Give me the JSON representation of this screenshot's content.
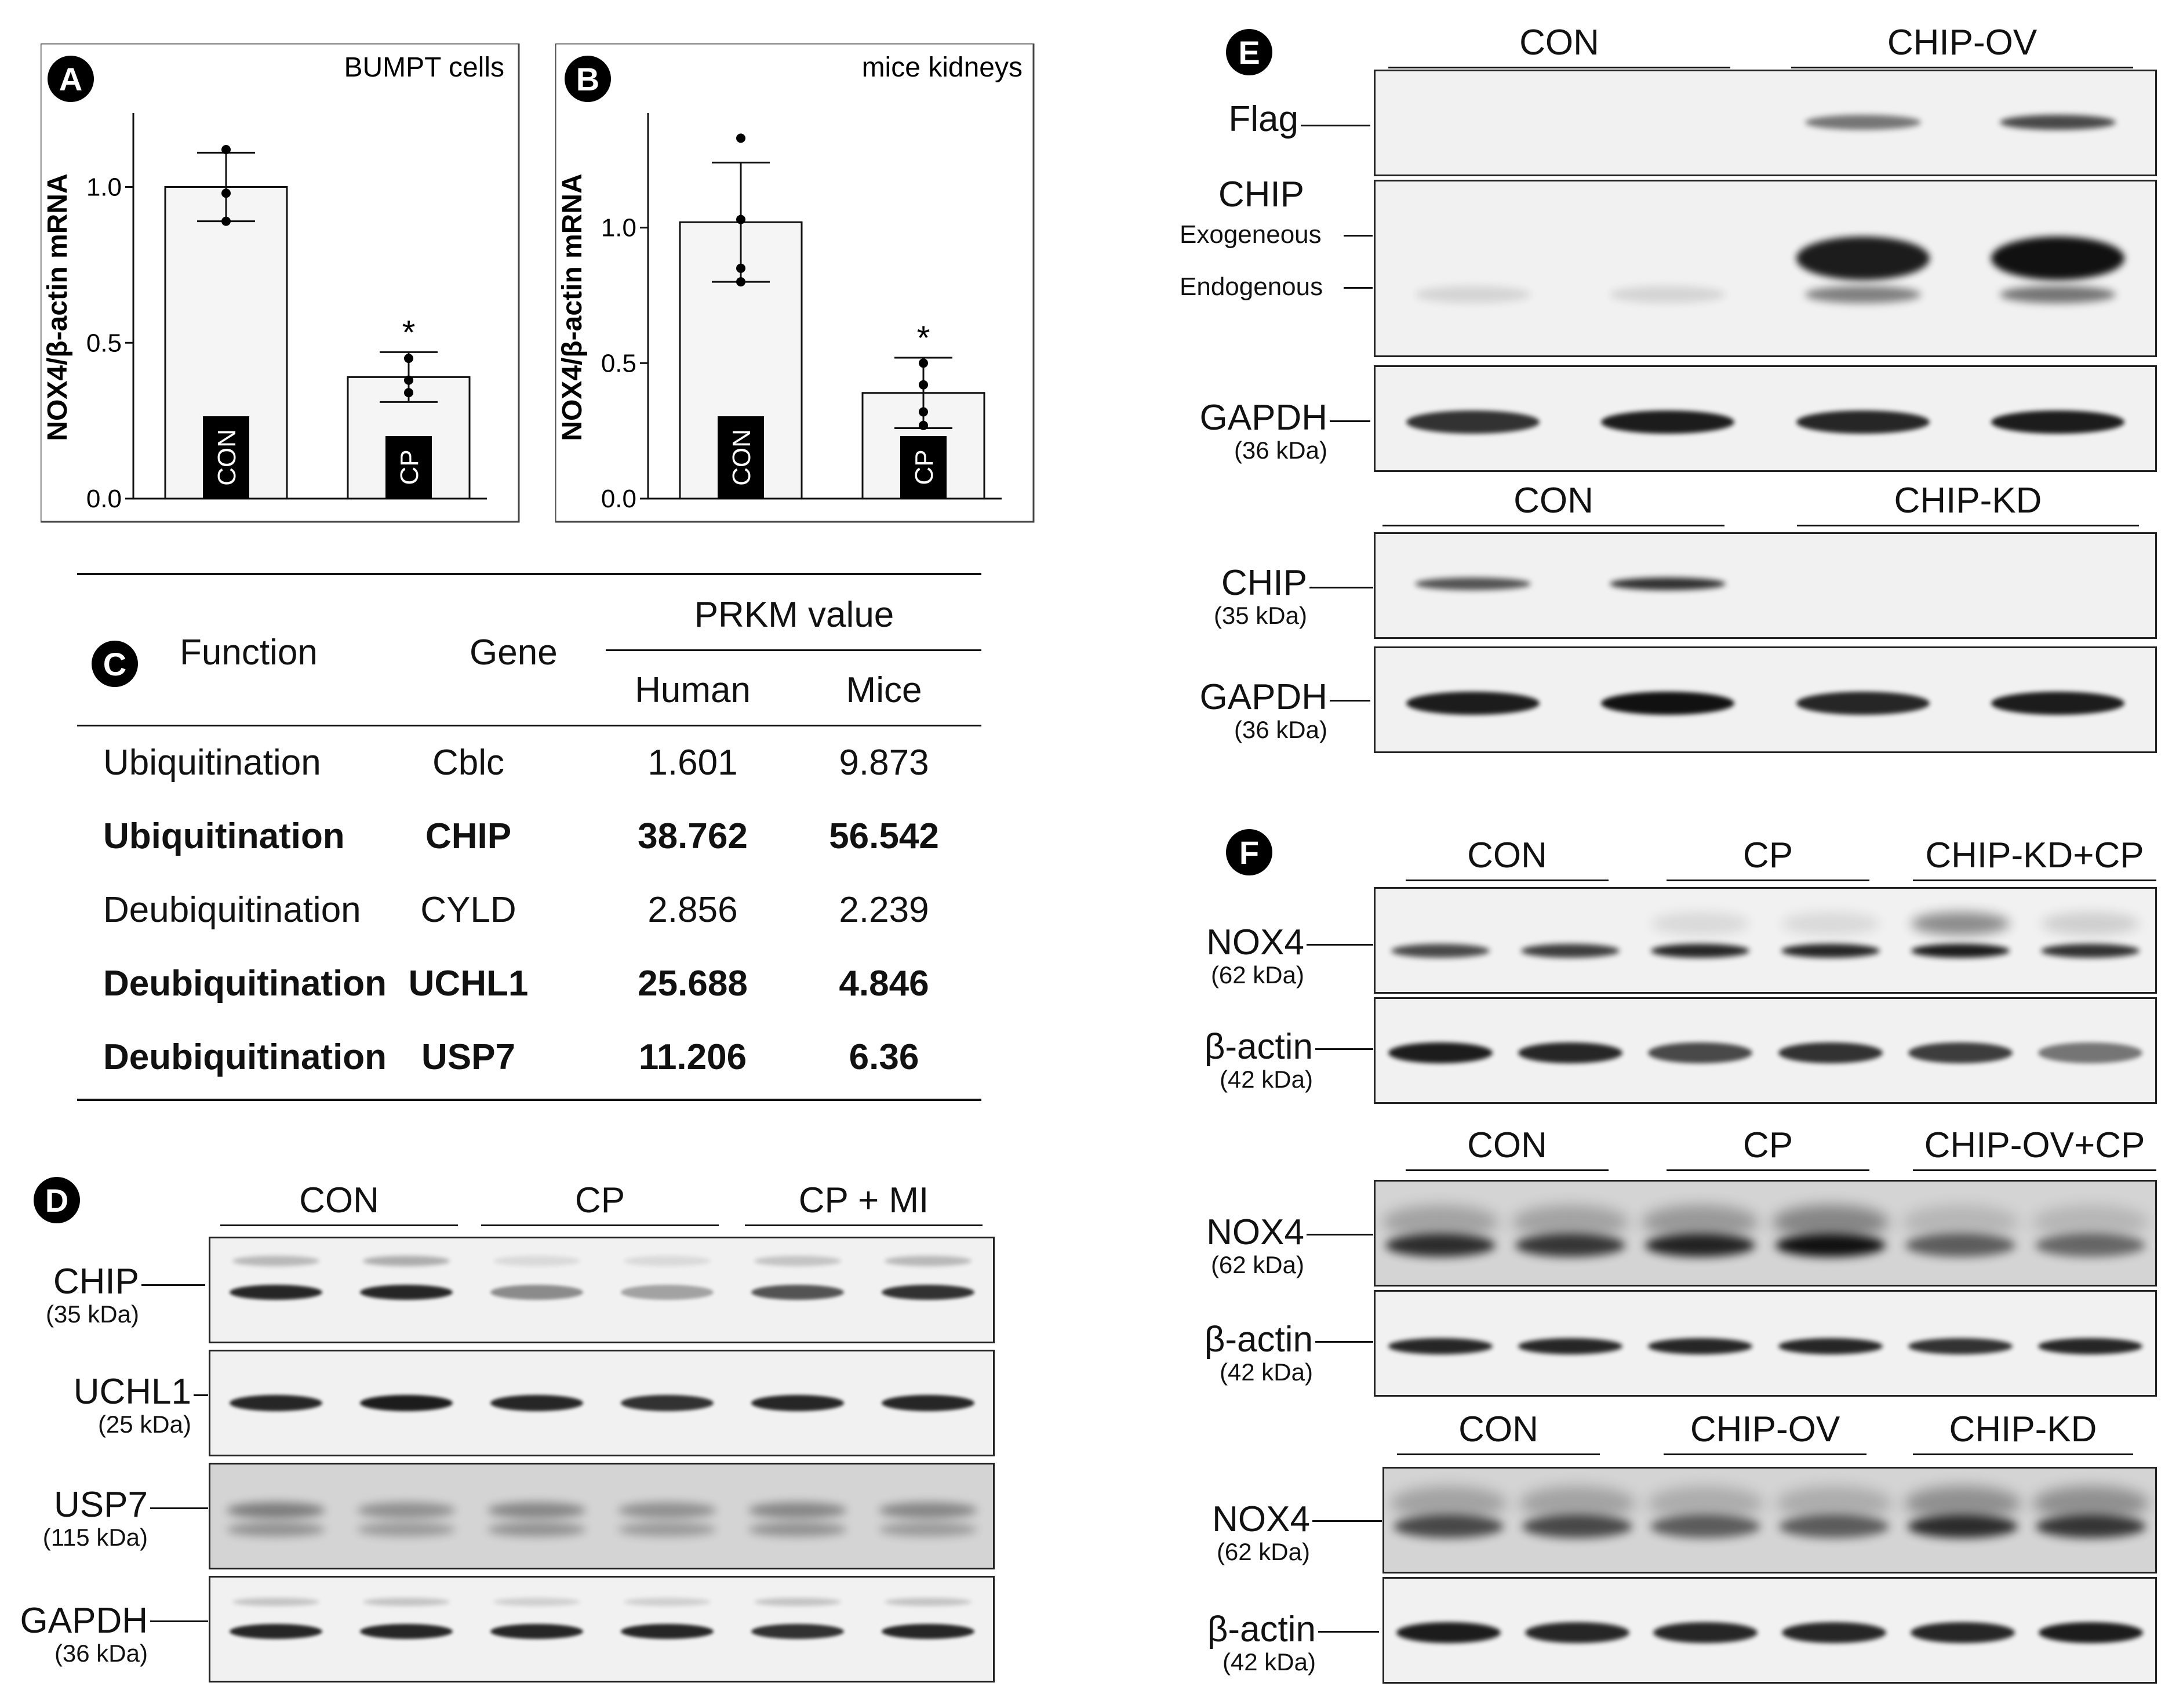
{
  "panels": {
    "A": "A",
    "B": "B",
    "C": "C",
    "D": "D",
    "E": "E",
    "F": "F"
  },
  "chart_data": [
    {
      "type": "bar",
      "title": "BUMPT cells",
      "ylabel": "NOX4/β-actin mRNA",
      "categories": [
        "CON",
        "CP"
      ],
      "values": [
        1.0,
        0.39
      ],
      "error": [
        0.11,
        0.08
      ],
      "points": [
        [
          1.12,
          0.98,
          0.89
        ],
        [
          0.45,
          0.38,
          0.34
        ]
      ],
      "ylim": [
        0,
        1.2
      ],
      "yticks": [
        "0.0",
        "0.5",
        "1.0"
      ],
      "significance": [
        "",
        "*"
      ]
    },
    {
      "type": "bar",
      "title": "mice kidneys",
      "ylabel": "NOX4/β-actin mRNA",
      "categories": [
        "CON",
        "CP"
      ],
      "values": [
        1.02,
        0.39
      ],
      "error": [
        0.22,
        0.13
      ],
      "points": [
        [
          1.33,
          1.03,
          0.85,
          0.8
        ],
        [
          0.5,
          0.42,
          0.32,
          0.27
        ]
      ],
      "ylim": [
        0,
        1.38
      ],
      "yticks": [
        "0.0",
        "0.5",
        "1.0"
      ],
      "significance": [
        "",
        "*"
      ]
    }
  ],
  "table_c": {
    "header": {
      "function": "Function",
      "gene": "Gene",
      "prkm": "PRKM value",
      "human": "Human",
      "mice": "Mice"
    },
    "rows": [
      {
        "function": "Ubiquitination",
        "gene": "Cblc",
        "human": "1.601",
        "mice": "9.873",
        "bold": false
      },
      {
        "function": "Ubiquitination",
        "gene": "CHIP",
        "human": "38.762",
        "mice": "56.542",
        "bold": true
      },
      {
        "function": "Deubiquitination",
        "gene": "CYLD",
        "human": "2.856",
        "mice": "2.239",
        "bold": false
      },
      {
        "function": "Deubiquitination",
        "gene": "UCHL1",
        "human": "25.688",
        "mice": "4.846",
        "bold": true
      },
      {
        "function": "Deubiquitination",
        "gene": "USP7",
        "human": "11.206",
        "mice": "6.36",
        "bold": true
      }
    ]
  },
  "panel_d": {
    "groups": [
      "CON",
      "CP",
      "CP + MI"
    ],
    "blots": [
      {
        "name": "CHIP",
        "kda": "(35 kDa)"
      },
      {
        "name": "UCHL1",
        "kda": "(25 kDa)"
      },
      {
        "name": "USP7",
        "kda": "(115 kDa)"
      },
      {
        "name": "GAPDH",
        "kda": "(36 kDa)"
      }
    ]
  },
  "panel_e": {
    "top_groups": [
      "CON",
      "CHIP-OV"
    ],
    "flag": "Flag",
    "chip": "CHIP",
    "exogeneous": "Exogeneous",
    "endogenous": "Endogenous",
    "gapdh": "GAPDH",
    "gapdh_kda": "(36 kDa)",
    "bottom_groups": [
      "CON",
      "CHIP-KD"
    ],
    "chip_kda": "(35 kDa)"
  },
  "panel_f": {
    "set1_groups": [
      "CON",
      "CP",
      "CHIP-KD+CP"
    ],
    "set2_groups": [
      "CON",
      "CP",
      "CHIP-OV+CP"
    ],
    "set3_groups": [
      "CON",
      "CHIP-OV",
      "CHIP-KD"
    ],
    "nox4": "NOX4",
    "nox4_kda": "(62 kDa)",
    "actin": "β-actin",
    "actin_kda": "(42 kDa)"
  }
}
